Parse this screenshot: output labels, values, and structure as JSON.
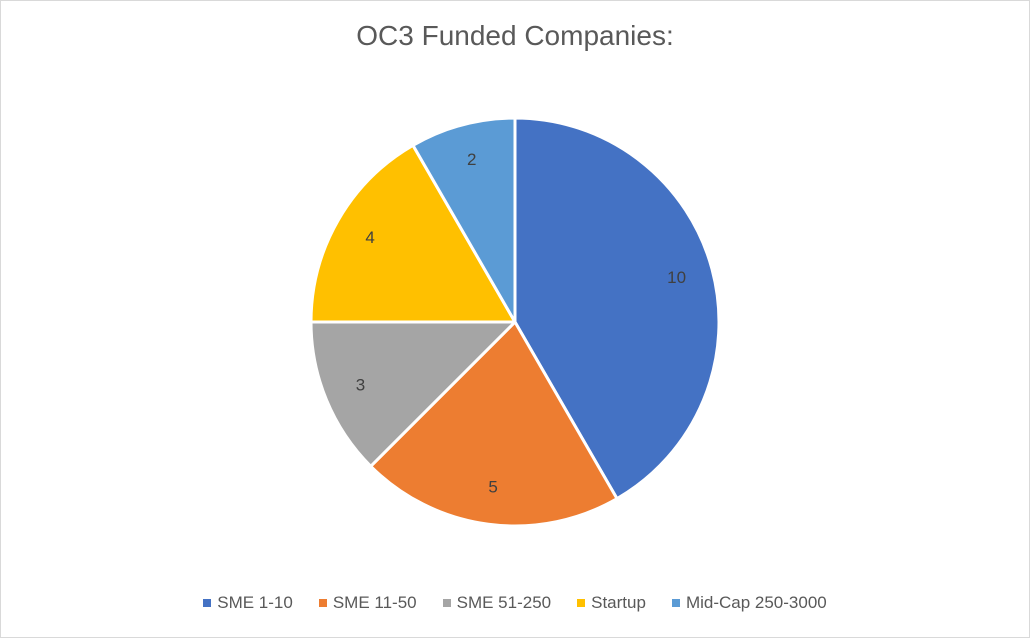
{
  "chart_data": {
    "type": "pie",
    "title": "OC3 Funded Companies:",
    "categories": [
      "SME 1-10",
      "SME 11-50",
      "SME 51-250",
      "Startup",
      "Mid-Cap 250-3000"
    ],
    "values": [
      10,
      5,
      3,
      4,
      2
    ],
    "data_labels": [
      "10",
      "5",
      "3",
      "4",
      "2"
    ],
    "colors": [
      "#4472C4",
      "#ED7D31",
      "#A5A5A5",
      "#FFC000",
      "#5B9BD5"
    ],
    "legend_position": "bottom",
    "start_angle": "top",
    "direction": "clockwise"
  }
}
